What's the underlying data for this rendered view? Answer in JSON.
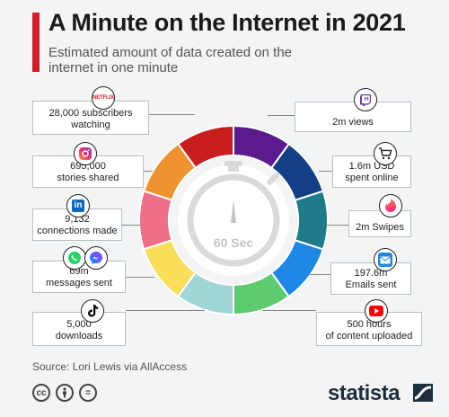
{
  "header": {
    "title": "A Minute on the Internet in 2021",
    "subtitle": "Estimated amount of data created on the internet in one minute"
  },
  "center": {
    "label": "60 Sec"
  },
  "items": [
    {
      "text": [
        "28,000 subscribers",
        "watching"
      ],
      "icon": "netflix-icon",
      "icon_text": "NETFLIX",
      "color": "#c81e1e"
    },
    {
      "text": [
        "695,000",
        "stories shared"
      ],
      "icon": "instagram-icon",
      "color": "#f0932e"
    },
    {
      "text": [
        "9,132",
        "connections made"
      ],
      "icon": "linkedin-icon",
      "icon_text": "in",
      "color": "#ee6f86"
    },
    {
      "text": [
        "69m",
        "messages sent"
      ],
      "icon": "whatsapp-messenger-icon",
      "color": "#f8de59"
    },
    {
      "text": [
        "5,000",
        "downloads"
      ],
      "icon": "tiktok-icon",
      "color": "#9fd7d8"
    },
    {
      "text": [
        "500 hours",
        "of content uploaded"
      ],
      "icon": "youtube-icon",
      "color": "#5dcc6e"
    },
    {
      "text": [
        "197.6m",
        "Emails sent"
      ],
      "icon": "email-icon",
      "color": "#1e88e5"
    },
    {
      "text": [
        "2m Swipes"
      ],
      "icon": "tinder-icon",
      "color": "#1d7b8a"
    },
    {
      "text": [
        "1.6m USD",
        "spent online"
      ],
      "icon": "shopping-cart-icon",
      "color": "#123f85"
    },
    {
      "text": [
        "2m views"
      ],
      "icon": "twitch-icon",
      "color": "#5b1a8e"
    }
  ],
  "footer": {
    "source": "Source: Lori Lewis via AllAccess",
    "license_icons": [
      "cc",
      "by",
      "="
    ],
    "brand": "statista"
  }
}
